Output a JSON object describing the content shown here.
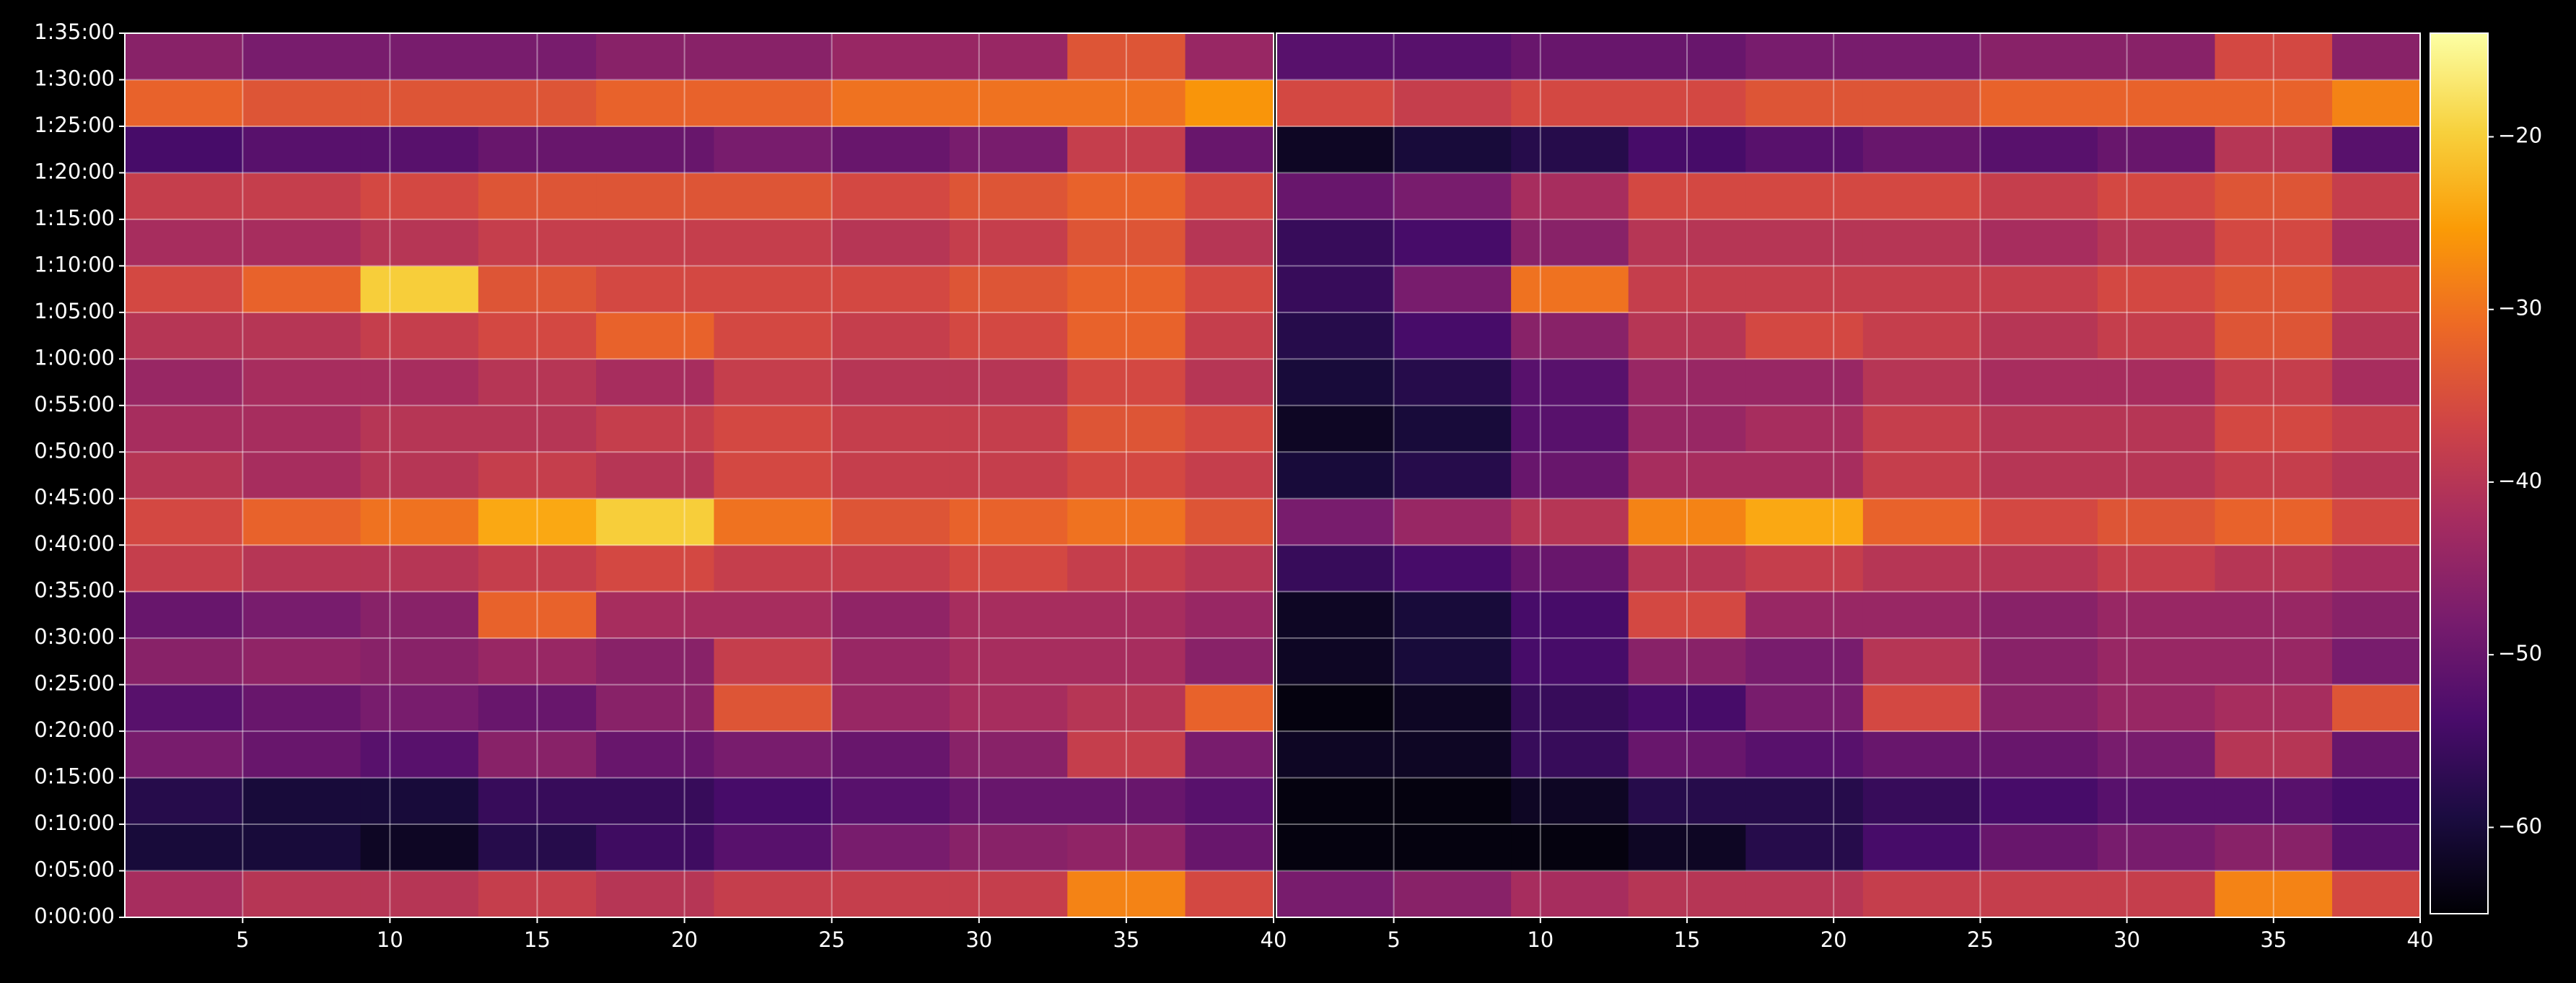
{
  "chart_data": {
    "type": "heatmap",
    "xlim": [
      1,
      40
    ],
    "xticks": [
      5,
      10,
      15,
      20,
      25,
      30,
      35,
      40
    ],
    "ylim": [
      0,
      5700
    ],
    "yticks": [
      {
        "value": 0,
        "label": "0:00:00"
      },
      {
        "value": 300,
        "label": "0:05:00"
      },
      {
        "value": 600,
        "label": "0:10:00"
      },
      {
        "value": 900,
        "label": "0:15:00"
      },
      {
        "value": 1200,
        "label": "0:20:00"
      },
      {
        "value": 1500,
        "label": "0:25:00"
      },
      {
        "value": 1800,
        "label": "0:30:00"
      },
      {
        "value": 2100,
        "label": "0:35:00"
      },
      {
        "value": 2400,
        "label": "0:40:00"
      },
      {
        "value": 2700,
        "label": "0:45:00"
      },
      {
        "value": 3000,
        "label": "0:50:00"
      },
      {
        "value": 3300,
        "label": "0:55:00"
      },
      {
        "value": 3600,
        "label": "1:00:00"
      },
      {
        "value": 3900,
        "label": "1:05:00"
      },
      {
        "value": 4200,
        "label": "1:10:00"
      },
      {
        "value": 4500,
        "label": "1:15:00"
      },
      {
        "value": 4800,
        "label": "1:20:00"
      },
      {
        "value": 5100,
        "label": "1:25:00"
      },
      {
        "value": 5400,
        "label": "1:30:00"
      },
      {
        "value": 5700,
        "label": "1:35:00"
      }
    ],
    "x_edges": [
      1,
      5,
      9,
      13,
      17,
      21,
      25,
      29,
      33,
      37,
      40
    ],
    "y_edges": [
      0,
      300,
      600,
      900,
      1200,
      1500,
      1800,
      2100,
      2400,
      2700,
      3000,
      3300,
      3600,
      3900,
      4200,
      4500,
      4800,
      5100,
      5400,
      5700
    ],
    "grid": true,
    "colormap": [
      "#000004",
      "#1b0c41",
      "#4a0c6b",
      "#781c6d",
      "#a52c60",
      "#cf4446",
      "#ed6925",
      "#fb9b06",
      "#f7d13d",
      "#fcffa4"
    ],
    "clim": [
      -65,
      -14
    ],
    "cticks": [
      {
        "value": -20,
        "label": "−20"
      },
      {
        "value": -30,
        "label": "−30"
      },
      {
        "value": -40,
        "label": "−40"
      },
      {
        "value": -50,
        "label": "−50"
      },
      {
        "value": -60,
        "label": "−60"
      }
    ],
    "panels": [
      {
        "values": [
          [
            -42,
            -40,
            -40,
            -38,
            -40,
            -38,
            -38,
            -38,
            -28,
            -36
          ],
          [
            -60,
            -60,
            -62,
            -58,
            -55,
            -52,
            -48,
            -46,
            -45,
            -50
          ],
          [
            -58,
            -60,
            -60,
            -56,
            -56,
            -54,
            -52,
            -50,
            -50,
            -52
          ],
          [
            -48,
            -50,
            -52,
            -46,
            -50,
            -48,
            -50,
            -46,
            -38,
            -48
          ],
          [
            -52,
            -50,
            -48,
            -50,
            -46,
            -34,
            -44,
            -42,
            -40,
            -32
          ],
          [
            -46,
            -45,
            -46,
            -44,
            -46,
            -38,
            -44,
            -42,
            -42,
            -46
          ],
          [
            -50,
            -48,
            -46,
            -32,
            -42,
            -42,
            -45,
            -42,
            -42,
            -44
          ],
          [
            -38,
            -40,
            -40,
            -38,
            -36,
            -38,
            -38,
            -36,
            -38,
            -40
          ],
          [
            -36,
            -32,
            -30,
            -24,
            -20,
            -30,
            -34,
            -32,
            -30,
            -34
          ],
          [
            -40,
            -42,
            -40,
            -38,
            -40,
            -36,
            -38,
            -38,
            -36,
            -38
          ],
          [
            -42,
            -42,
            -40,
            -40,
            -38,
            -36,
            -38,
            -38,
            -34,
            -36
          ],
          [
            -44,
            -42,
            -42,
            -40,
            -42,
            -38,
            -40,
            -40,
            -36,
            -40
          ],
          [
            -40,
            -40,
            -38,
            -36,
            -32,
            -36,
            -38,
            -36,
            -32,
            -38
          ],
          [
            -36,
            -32,
            -20,
            -34,
            -36,
            -36,
            -36,
            -34,
            -32,
            -36
          ],
          [
            -42,
            -42,
            -40,
            -38,
            -38,
            -38,
            -40,
            -38,
            -34,
            -40
          ],
          [
            -38,
            -38,
            -36,
            -34,
            -34,
            -34,
            -36,
            -34,
            -32,
            -36
          ],
          [
            -54,
            -52,
            -52,
            -50,
            -50,
            -48,
            -50,
            -48,
            -38,
            -50
          ],
          [
            -32,
            -34,
            -34,
            -34,
            -32,
            -32,
            -30,
            -30,
            -30,
            -26
          ],
          [
            -46,
            -48,
            -48,
            -48,
            -46,
            -46,
            -44,
            -44,
            -34,
            -44
          ]
        ]
      },
      {
        "values": [
          [
            -48,
            -46,
            -42,
            -40,
            -40,
            -38,
            -38,
            -38,
            -28,
            -36
          ],
          [
            -64,
            -64,
            -64,
            -62,
            -58,
            -54,
            -50,
            -48,
            -46,
            -52
          ],
          [
            -64,
            -64,
            -62,
            -58,
            -58,
            -56,
            -54,
            -52,
            -52,
            -54
          ],
          [
            -62,
            -62,
            -56,
            -50,
            -52,
            -50,
            -50,
            -48,
            -40,
            -50
          ],
          [
            -64,
            -62,
            -56,
            -54,
            -48,
            -36,
            -46,
            -44,
            -42,
            -34
          ],
          [
            -62,
            -60,
            -54,
            -46,
            -48,
            -40,
            -46,
            -44,
            -44,
            -48
          ],
          [
            -62,
            -60,
            -54,
            -36,
            -44,
            -44,
            -46,
            -44,
            -44,
            -46
          ],
          [
            -56,
            -54,
            -50,
            -40,
            -38,
            -40,
            -40,
            -38,
            -40,
            -42
          ],
          [
            -48,
            -44,
            -40,
            -28,
            -24,
            -32,
            -36,
            -34,
            -32,
            -36
          ],
          [
            -60,
            -58,
            -50,
            -42,
            -42,
            -38,
            -40,
            -40,
            -38,
            -40
          ],
          [
            -62,
            -60,
            -52,
            -44,
            -42,
            -38,
            -40,
            -40,
            -36,
            -38
          ],
          [
            -60,
            -58,
            -52,
            -44,
            -44,
            -40,
            -42,
            -42,
            -38,
            -42
          ],
          [
            -58,
            -54,
            -46,
            -40,
            -36,
            -38,
            -40,
            -38,
            -34,
            -40
          ],
          [
            -56,
            -48,
            -30,
            -38,
            -38,
            -38,
            -38,
            -36,
            -34,
            -38
          ],
          [
            -56,
            -54,
            -46,
            -40,
            -40,
            -40,
            -42,
            -40,
            -36,
            -42
          ],
          [
            -50,
            -48,
            -42,
            -36,
            -36,
            -36,
            -38,
            -36,
            -34,
            -38
          ],
          [
            -62,
            -60,
            -58,
            -54,
            -52,
            -50,
            -52,
            -50,
            -40,
            -52
          ],
          [
            -36,
            -38,
            -36,
            -36,
            -34,
            -34,
            -32,
            -32,
            -32,
            -28
          ],
          [
            -52,
            -52,
            -50,
            -50,
            -48,
            -48,
            -46,
            -46,
            -36,
            -46
          ]
        ]
      }
    ]
  }
}
